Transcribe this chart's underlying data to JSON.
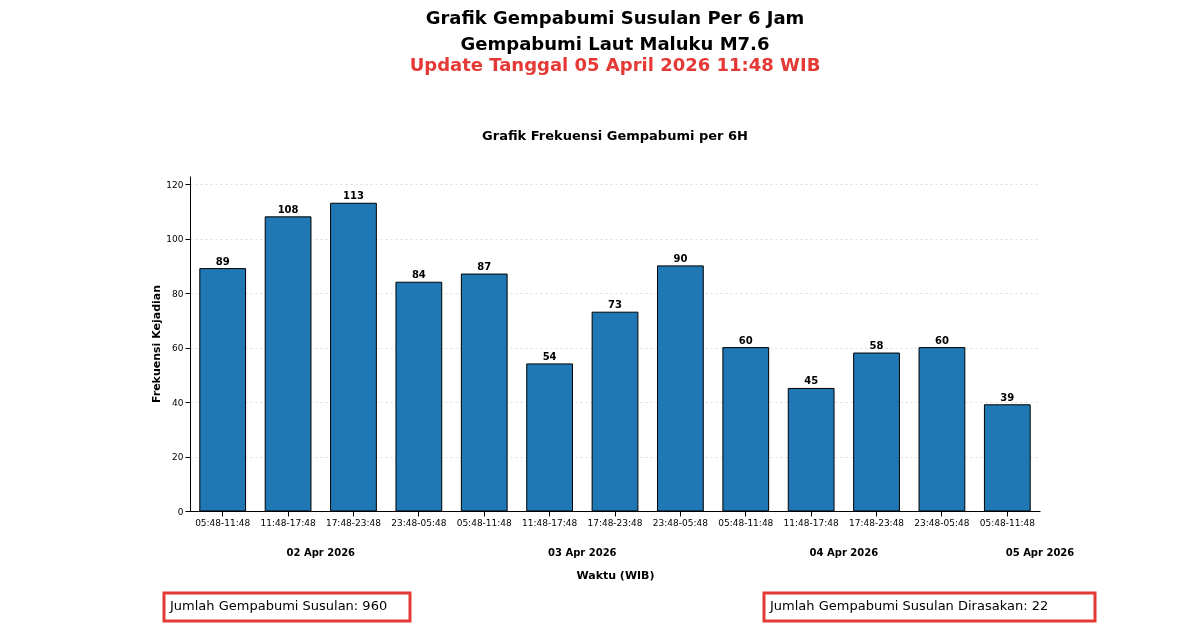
{
  "chart_data": {
    "type": "bar",
    "title": "Grafik Gempabumi Susulan Per 6 Jam\nGempabumi Laut Maluku M7.6",
    "subtitle": "Update Tanggal 05 April 2026 11:48 WIB",
    "xlabel": "Waktu (WIB)",
    "ylabel": "Frekuensi Kejadian",
    "categories": [
      "05:48-11:48",
      "11:48-17:48",
      "17:48-23:48",
      "23:48-05:48",
      "05:48-11:48",
      "11:48-17:48",
      "17:48-23:48",
      "23:48-05:48",
      "05:48-11:48",
      "11:48-17:48",
      "17:48-23:48",
      "23:48-05:48",
      "05:48-11:48"
    ],
    "values": [
      89,
      108,
      113,
      84,
      87,
      54,
      73,
      90,
      60,
      45,
      58,
      60,
      39
    ],
    "color": "#1f77b4",
    "ylim": [
      0,
      123
    ],
    "yticks": [
      0,
      20,
      40,
      60,
      80,
      100,
      120
    ],
    "grid": "y",
    "data_labels": true,
    "annotations": [
      "Grafik Frekuensi Gempabumi per 6H",
      "02 Apr 2026",
      "03 Apr 2026",
      "04 Apr 2026",
      "05 Apr 2026",
      "Jumlah Gempabumi Susulan:  960",
      "Jumlah Gempabumi Susulan Dirasakan: 22"
    ]
  }
}
